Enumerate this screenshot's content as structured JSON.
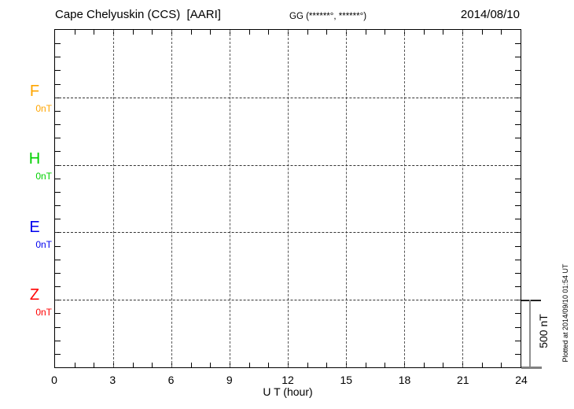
{
  "header": {
    "title": "Cape Chelyuskin (CCS)  [AARI]",
    "coordinates": "GG (******°, ******°)",
    "date": "2014/08/10"
  },
  "x_axis": {
    "label": "U T (hour)",
    "tick_labels": [
      "0",
      "3",
      "6",
      "9",
      "12",
      "15",
      "18",
      "21",
      "24"
    ],
    "min": 0,
    "max": 24,
    "minor_step": 1,
    "major_step": 3
  },
  "y_axis": {
    "tick_rows": 25,
    "rows_per_panel": 5,
    "tick_interval_nT": 100
  },
  "components": [
    {
      "name": "F",
      "zero_label": "0nT",
      "color": "#FFA500"
    },
    {
      "name": "H",
      "zero_label": "0nT",
      "color": "#00D000"
    },
    {
      "name": "E",
      "zero_label": "0nT",
      "color": "#0000EE"
    },
    {
      "name": "Z",
      "zero_label": "0nT",
      "color": "#FF0000"
    }
  ],
  "scale_bar": {
    "label": "500 nT"
  },
  "footer": {
    "plotted_at": "Plotted at 2014/09/10 01:54 UT"
  },
  "chart_data": {
    "type": "line",
    "title": "Cape Chelyuskin (CCS) [AARI]",
    "subtitle": "GG (******°, ******°)",
    "date": "2014/08/10",
    "xlabel": "U T (hour)",
    "ylabel": "nT",
    "xlim": [
      0,
      24
    ],
    "x_major_ticks": [
      0,
      3,
      6,
      9,
      12,
      15,
      18,
      21,
      24
    ],
    "x_minor_tick_interval_hours": 1,
    "y_tick_interval_nT": 100,
    "panel_spacing_nT": 500,
    "grid": "dotted vertical lines every 3 h; dotted horizontal zero lines per component",
    "legend_position": "left margin",
    "series": [
      {
        "name": "F",
        "color": "#FFA500",
        "zero_line_label": "0nT",
        "values": []
      },
      {
        "name": "H",
        "color": "#00D000",
        "zero_line_label": "0nT",
        "values": []
      },
      {
        "name": "E",
        "color": "#0000EE",
        "zero_line_label": "0nT",
        "values": []
      },
      {
        "name": "Z",
        "color": "#FF0000",
        "zero_line_label": "0nT",
        "values": []
      }
    ],
    "scale_bar_nT": 500,
    "note": "No data traces are drawn; only zero reference lines for each component are visible",
    "annotations": [
      "Plotted at 2014/09/10 01:54 UT"
    ]
  }
}
